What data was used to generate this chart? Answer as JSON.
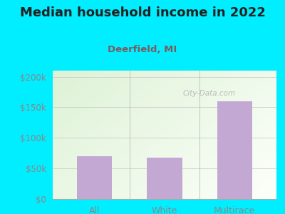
{
  "title": "Median household income in 2022",
  "subtitle": "Deerfield, MI",
  "categories": [
    "All",
    "White",
    "Multirace"
  ],
  "values": [
    70000,
    68000,
    160000
  ],
  "bar_color": "#c4a8d4",
  "yticks": [
    0,
    50000,
    100000,
    150000,
    200000
  ],
  "ytick_labels": [
    "$0",
    "$50k",
    "$100k",
    "$150k",
    "$200k"
  ],
  "ylim": [
    0,
    210000
  ],
  "background_outer": "#00eeff",
  "title_fontsize": 13,
  "subtitle_fontsize": 9.5,
  "subtitle_color": "#7a5c5c",
  "tick_color": "#888888",
  "watermark": "City-Data.com"
}
